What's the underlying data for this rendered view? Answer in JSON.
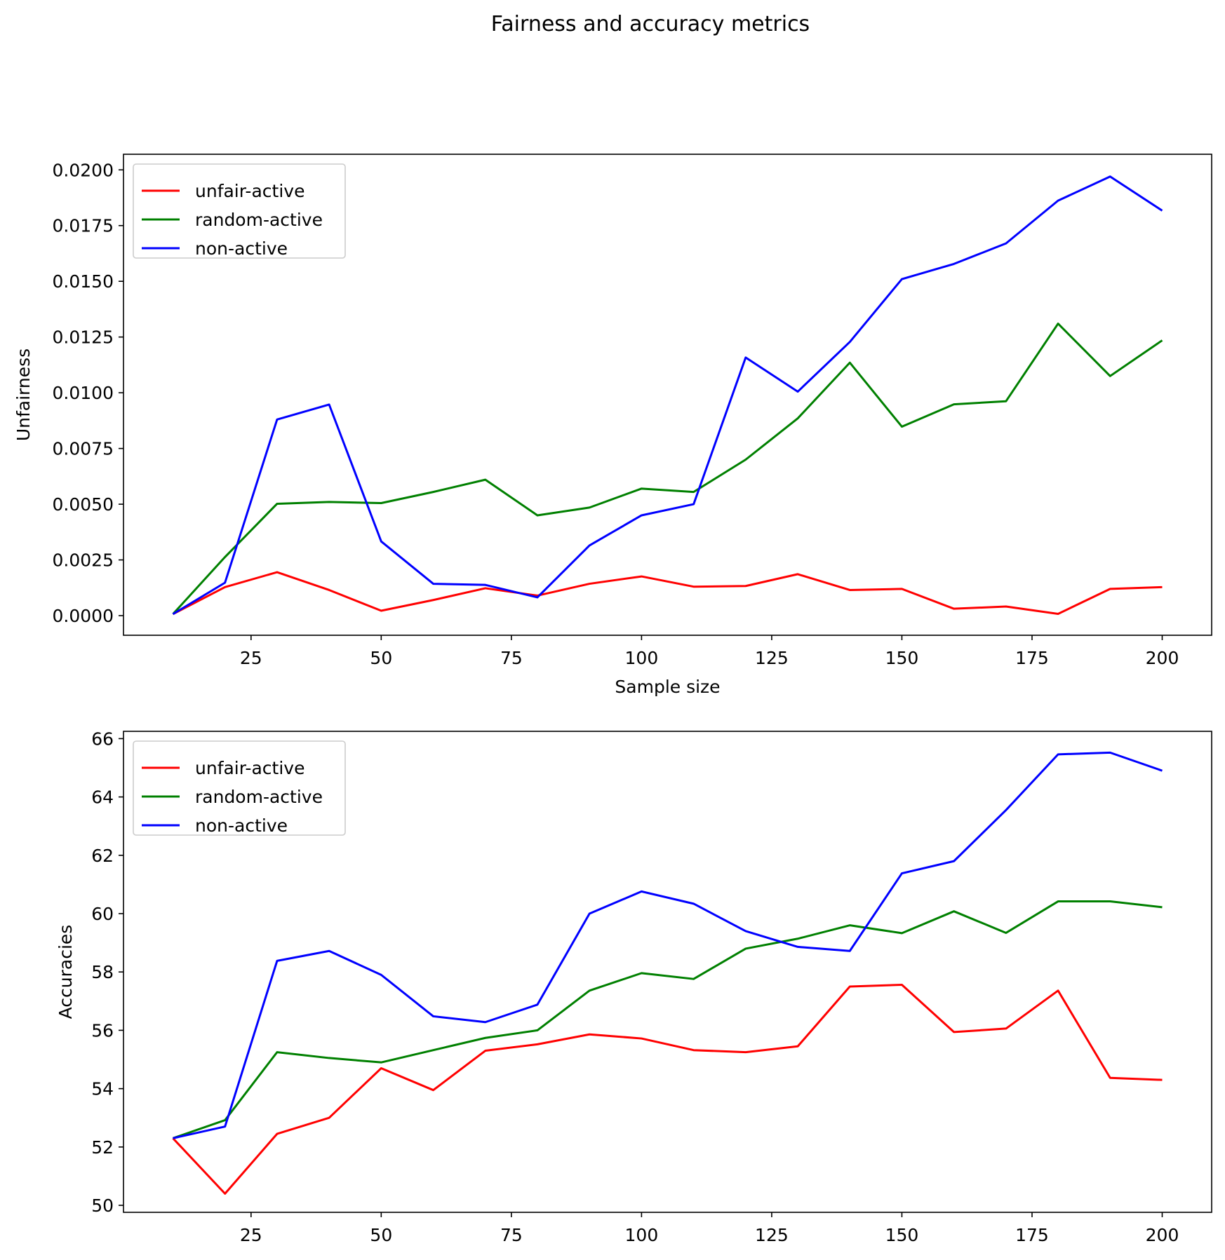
{
  "figure": {
    "suptitle": "Fairness and accuracy metrics"
  },
  "chart_data": [
    {
      "type": "line",
      "title": "",
      "xlabel": "Sample size",
      "ylabel": "Unfairness",
      "x": [
        10,
        20,
        30,
        40,
        50,
        60,
        70,
        80,
        90,
        100,
        110,
        120,
        130,
        140,
        150,
        160,
        170,
        180,
        190,
        200
      ],
      "xlim": [
        0.5,
        209.5
      ],
      "ylim": [
        -0.00088,
        0.0207
      ],
      "xticks": [
        25,
        50,
        75,
        100,
        125,
        150,
        175,
        200
      ],
      "xtick_labels": [
        "25",
        "50",
        "75",
        "100",
        "125",
        "150",
        "175",
        "200"
      ],
      "yticks": [
        0,
        0.0025,
        0.005,
        0.0075,
        0.01,
        0.0125,
        0.015,
        0.0175,
        0.02
      ],
      "ytick_labels": [
        "0.0000",
        "0.0025",
        "0.0050",
        "0.0075",
        "0.0100",
        "0.0125",
        "0.0150",
        "0.0175",
        "0.0200"
      ],
      "grid": false,
      "legend": {
        "placement": "top-left"
      },
      "series": [
        {
          "name": "unfair-active",
          "color": "#ff0000",
          "values": [
            7e-05,
            0.00128,
            0.00195,
            0.00115,
            0.00022,
            0.0007,
            0.00123,
            0.0009,
            0.00143,
            0.00176,
            0.0013,
            0.00133,
            0.00186,
            0.00115,
            0.0012,
            0.00031,
            0.00041,
            8e-05,
            0.0012,
            0.00128
          ]
        },
        {
          "name": "random-active",
          "color": "#008000",
          "values": [
            7e-05,
            0.00263,
            0.00502,
            0.0051,
            0.00505,
            0.00555,
            0.0061,
            0.0045,
            0.00485,
            0.0057,
            0.00555,
            0.007,
            0.00885,
            0.01135,
            0.00848,
            0.00948,
            0.00962,
            0.0131,
            0.01075,
            0.01235
          ]
        },
        {
          "name": "non-active",
          "color": "#0000ff",
          "values": [
            7e-05,
            0.00148,
            0.0088,
            0.00947,
            0.00333,
            0.00143,
            0.00138,
            0.00082,
            0.00315,
            0.0045,
            0.005,
            0.01158,
            0.01005,
            0.01228,
            0.0151,
            0.01578,
            0.0167,
            0.01862,
            0.0197,
            0.01817
          ]
        }
      ]
    },
    {
      "type": "line",
      "title": "",
      "xlabel": "",
      "ylabel": "Accuracies",
      "x": [
        10,
        20,
        30,
        40,
        50,
        60,
        70,
        80,
        90,
        100,
        110,
        120,
        130,
        140,
        150,
        160,
        170,
        180,
        190,
        200
      ],
      "xlim": [
        0.5,
        209.5
      ],
      "ylim": [
        49.76,
        66.25
      ],
      "xticks": [
        25,
        50,
        75,
        100,
        125,
        150,
        175,
        200
      ],
      "xtick_labels": [
        "25",
        "50",
        "75",
        "100",
        "125",
        "150",
        "175",
        "200"
      ],
      "yticks": [
        50,
        52,
        54,
        56,
        58,
        60,
        62,
        64,
        66
      ],
      "ytick_labels": [
        "50",
        "52",
        "54",
        "56",
        "58",
        "60",
        "62",
        "64",
        "66"
      ],
      "grid": false,
      "legend": {
        "placement": "top-left"
      },
      "series": [
        {
          "name": "unfair-active",
          "color": "#ff0000",
          "values": [
            52.3,
            50.4,
            52.45,
            53.0,
            54.7,
            53.95,
            55.3,
            55.52,
            55.86,
            55.72,
            55.32,
            55.25,
            55.45,
            57.5,
            57.56,
            55.94,
            56.06,
            57.36,
            54.37,
            54.3
          ]
        },
        {
          "name": "random-active",
          "color": "#008000",
          "values": [
            52.3,
            52.92,
            55.25,
            55.05,
            54.9,
            55.32,
            55.74,
            56.0,
            57.36,
            57.96,
            57.76,
            58.8,
            59.14,
            59.6,
            59.33,
            60.08,
            59.34,
            60.42,
            60.42,
            60.22
          ]
        },
        {
          "name": "non-active",
          "color": "#0000ff",
          "values": [
            52.3,
            52.7,
            58.38,
            58.72,
            57.9,
            56.48,
            56.28,
            56.88,
            60.0,
            60.76,
            60.34,
            59.4,
            58.86,
            58.72,
            61.38,
            61.8,
            63.55,
            65.46,
            65.52,
            64.9
          ]
        }
      ]
    }
  ]
}
